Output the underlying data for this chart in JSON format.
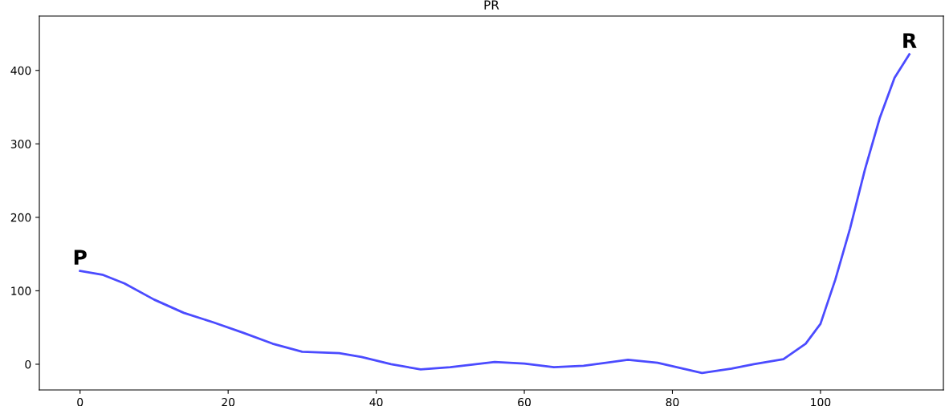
{
  "chart_data": {
    "type": "line",
    "title": "PR",
    "x": [
      0,
      3,
      6,
      10,
      14,
      18,
      22,
      26,
      30,
      35,
      38,
      42,
      46,
      50,
      56,
      60,
      64,
      68,
      74,
      78,
      84,
      88,
      91,
      95,
      98,
      100,
      102,
      104,
      106,
      108,
      110,
      112
    ],
    "series": [
      {
        "color": "#4b4bff",
        "values": [
          127,
          122,
          110,
          88,
          70,
          57,
          43,
          28,
          17,
          15,
          10,
          0,
          -7,
          -4,
          3,
          1,
          -4,
          -2,
          6,
          2,
          -12,
          -6,
          0,
          7,
          28,
          55,
          115,
          185,
          265,
          335,
          390,
          422
        ]
      }
    ],
    "annotations": [
      {
        "text": "P",
        "x": 0,
        "y": 127
      },
      {
        "text": "R",
        "x": 112,
        "y": 422
      }
    ],
    "xlim": [
      -5.5,
      116.6
    ],
    "ylim": [
      -35,
      474
    ],
    "xticks": [
      0,
      20,
      40,
      60,
      80,
      100
    ],
    "yticks": [
      0,
      100,
      200,
      300,
      400
    ],
    "grid": false,
    "legend": false,
    "marker": "none",
    "line_style": "solid"
  }
}
